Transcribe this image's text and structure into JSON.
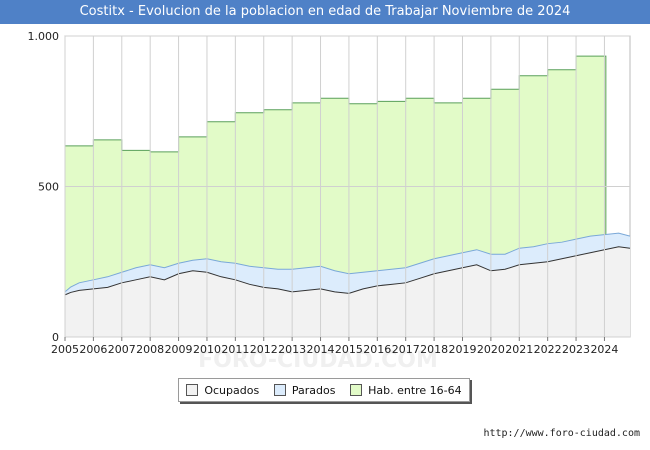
{
  "header": {
    "title": "Costitx - Evolucion de la poblacion en edad de Trabajar Noviembre de 2024"
  },
  "source": "http://www.foro-ciudad.com",
  "watermark": "FORO-CIUDAD.COM",
  "colors": {
    "title_bar": "#4f81c7",
    "hab_fill": "#e2fbc8",
    "hab_line": "#5aa05a",
    "parados_fill": "#dcecfc",
    "parados_line": "#7aa8d8",
    "ocupados_fill": "#f2f2f2",
    "ocupados_line": "#333333"
  },
  "chart_data": {
    "type": "area",
    "title": "Costitx - Evolucion de la poblacion en edad de Trabajar Noviembre de 2024",
    "xlim": [
      2005,
      2024.9
    ],
    "ylim": [
      0,
      1000
    ],
    "x_tick_labels": [
      "2005",
      "2006",
      "2007",
      "2008",
      "2009",
      "2010",
      "2011",
      "2012",
      "2013",
      "2014",
      "2015",
      "2016",
      "2017",
      "2018",
      "2019",
      "2020",
      "2021",
      "2022",
      "2023",
      "2024"
    ],
    "y_tick_labels": [
      "0",
      "500",
      "1.000"
    ],
    "y_tick_values": [
      0,
      500,
      1000
    ],
    "grid": true,
    "legend_position": "bottom",
    "legend": [
      "Ocupados",
      "Parados",
      "Hab. entre 16-64"
    ],
    "series": [
      {
        "name": "Hab. entre 16-64",
        "note_annual_steps": true,
        "years": [
          2005,
          2006,
          2007,
          2008,
          2009,
          2010,
          2011,
          2012,
          2013,
          2014,
          2015,
          2016,
          2017,
          2018,
          2019,
          2020,
          2021,
          2022,
          2023
        ],
        "values": [
          635,
          655,
          620,
          615,
          665,
          715,
          745,
          755,
          778,
          793,
          775,
          783,
          793,
          778,
          793,
          823,
          868,
          888,
          933
        ],
        "end_year": 2024.05
      },
      {
        "name": "Ocupados",
        "x": [
          2005,
          2005.2,
          2005.5,
          2006,
          2006.5,
          2007,
          2007.5,
          2008,
          2008.5,
          2009,
          2009.5,
          2010,
          2010.5,
          2011,
          2011.5,
          2012,
          2012.5,
          2013,
          2013.5,
          2014,
          2014.5,
          2015,
          2015.5,
          2016,
          2016.5,
          2017,
          2017.5,
          2018,
          2018.5,
          2019,
          2019.5,
          2020,
          2020.5,
          2021,
          2021.5,
          2022,
          2022.5,
          2023,
          2023.5,
          2024,
          2024.5,
          2024.9
        ],
        "values": [
          140,
          148,
          155,
          160,
          165,
          180,
          190,
          200,
          190,
          210,
          220,
          215,
          200,
          190,
          175,
          165,
          160,
          150,
          155,
          160,
          150,
          145,
          160,
          170,
          175,
          180,
          195,
          210,
          220,
          230,
          240,
          220,
          225,
          240,
          245,
          250,
          260,
          270,
          280,
          290,
          300,
          295
        ]
      },
      {
        "name": "Parados",
        "x": [
          2005,
          2005.2,
          2005.5,
          2006,
          2006.5,
          2007,
          2007.5,
          2008,
          2008.5,
          2009,
          2009.5,
          2010,
          2010.5,
          2011,
          2011.5,
          2012,
          2012.5,
          2013,
          2013.5,
          2014,
          2014.5,
          2015,
          2015.5,
          2016,
          2016.5,
          2017,
          2017.5,
          2018,
          2018.5,
          2019,
          2019.5,
          2020,
          2020.5,
          2021,
          2021.5,
          2022,
          2022.5,
          2023,
          2023.5,
          2024,
          2024.5,
          2024.9
        ],
        "values": [
          10,
          18,
          25,
          30,
          35,
          35,
          40,
          40,
          40,
          35,
          35,
          45,
          50,
          55,
          60,
          65,
          65,
          75,
          75,
          75,
          70,
          65,
          55,
          50,
          50,
          50,
          50,
          50,
          50,
          50,
          50,
          55,
          50,
          55,
          55,
          60,
          55,
          55,
          55,
          50,
          45,
          40
        ]
      }
    ]
  }
}
